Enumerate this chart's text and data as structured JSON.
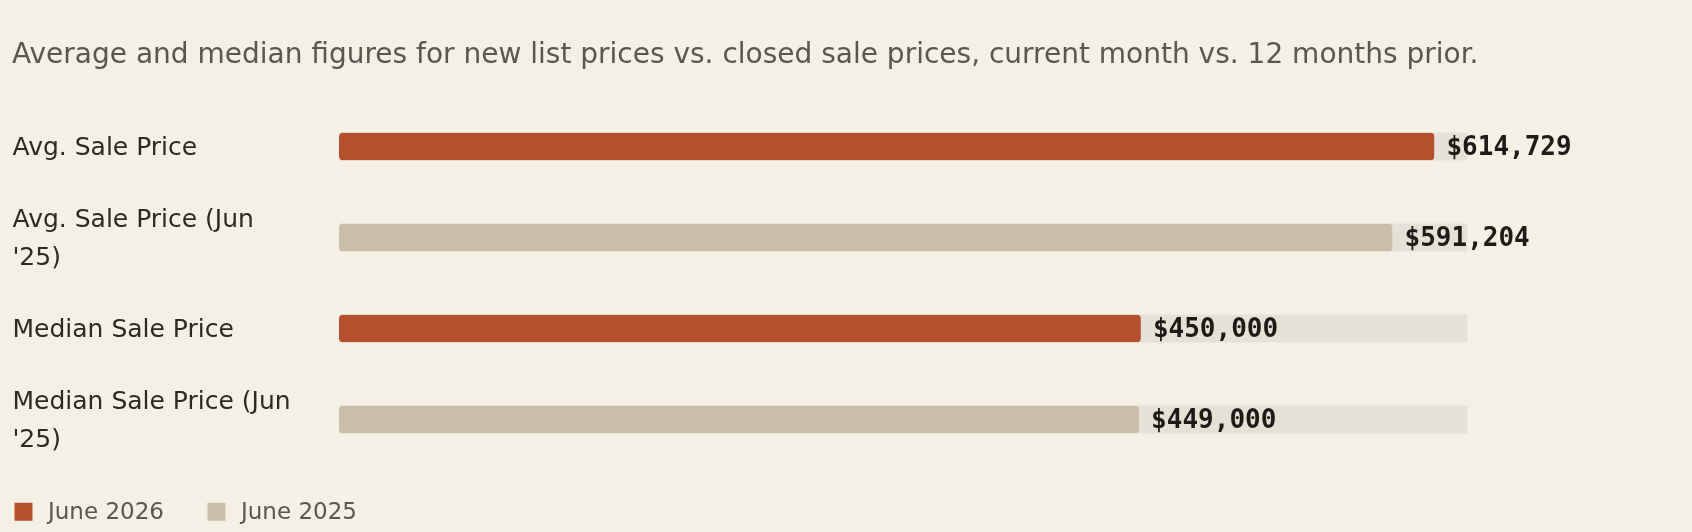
{
  "chart_data": {
    "type": "bar",
    "orientation": "horizontal",
    "title": "Average and median figures for new list prices vs. closed sale prices, current month vs. 12 months prior.",
    "categories": [
      "Avg. Sale Price",
      "Avg. Sale Price (Jun '25)",
      "Median Sale Price",
      "Median Sale Price (Jun '25)"
    ],
    "series": [
      {
        "name": "June 2026",
        "color": "#b5502f",
        "values": [
          614729,
          null,
          450000,
          null
        ],
        "value_labels": [
          "$614,729",
          null,
          "$450,000",
          null
        ]
      },
      {
        "name": "June 2025",
        "color": "#c9bfa9",
        "values": [
          null,
          591204,
          null,
          449000
        ],
        "value_labels": [
          null,
          "$591,204",
          null,
          "$449,000"
        ]
      }
    ],
    "xlim": [
      0,
      633000
    ],
    "tick_labels": "y",
    "grid": "y",
    "legend": "bottom left"
  }
}
